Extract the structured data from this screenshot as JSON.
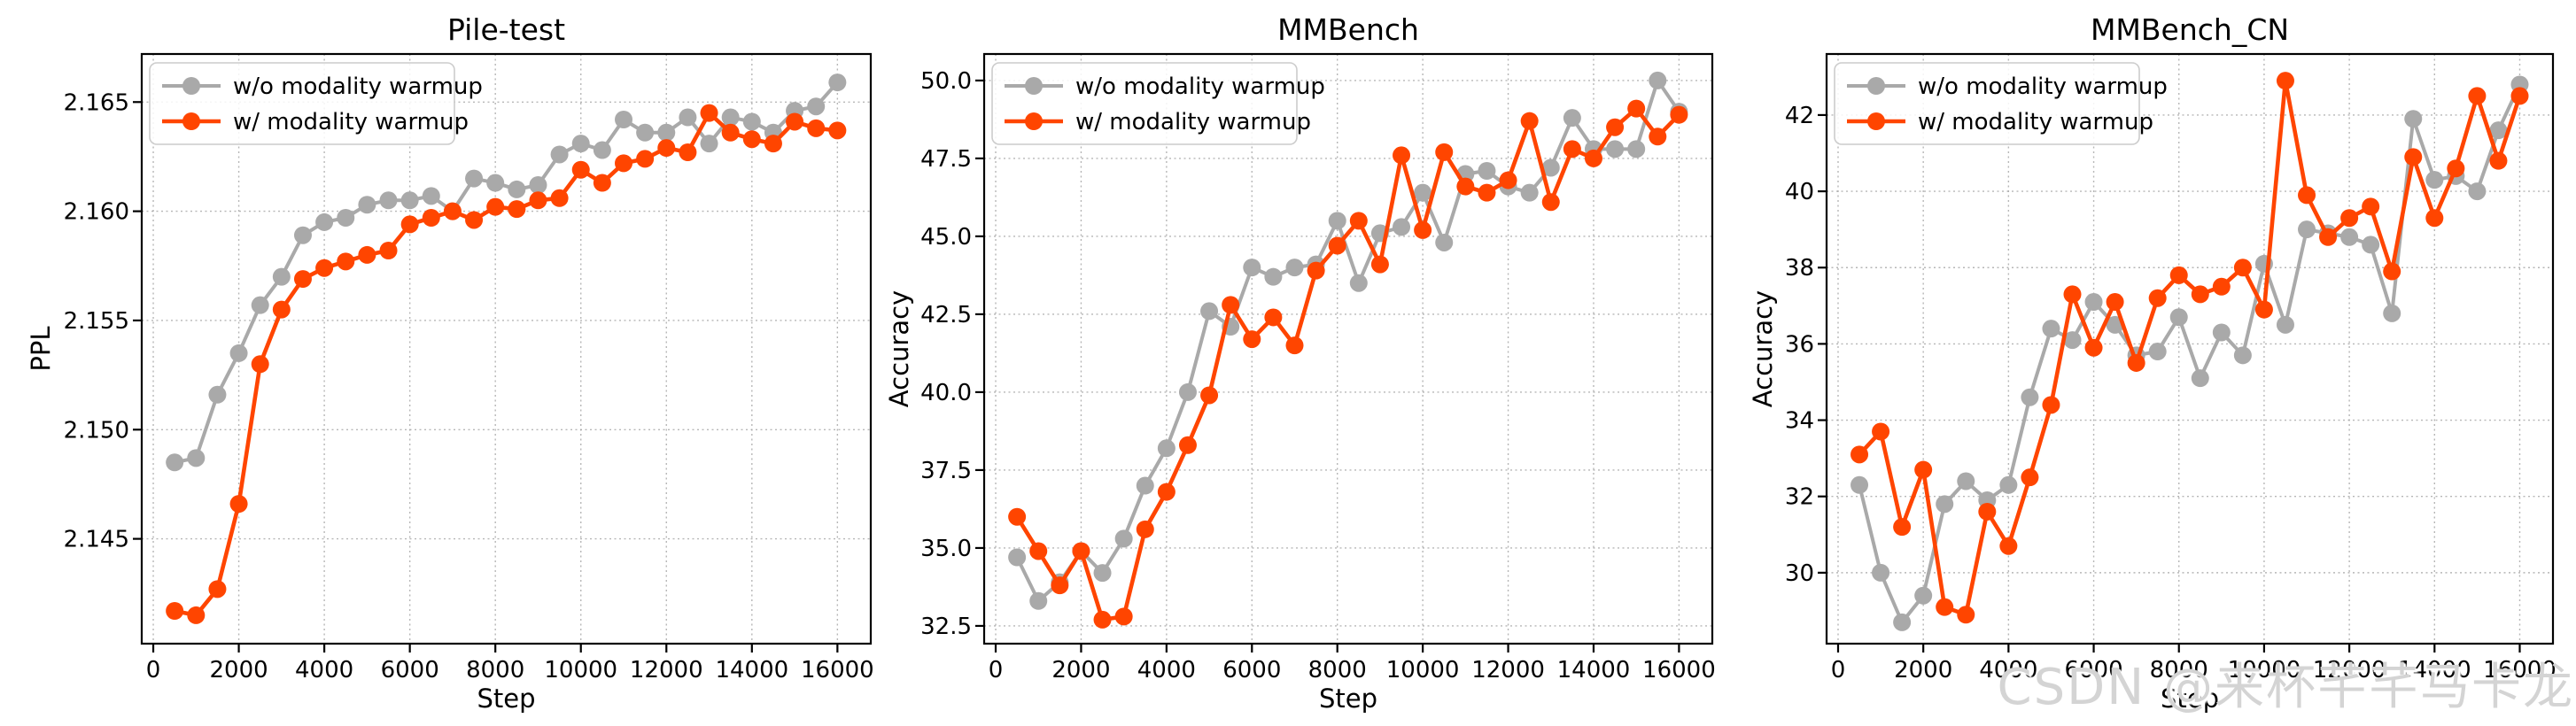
{
  "figure": {
    "watermark": "CSDN @来杯芊芊马卡龙",
    "background": "#ffffff",
    "accent_colors": {
      "without_warmup": "#a9a9a9",
      "with_warmup": "#ff4500"
    },
    "legend_labels": [
      "w/o modality warmup",
      "w/ modality warmup"
    ]
  },
  "chart_data": [
    {
      "type": "line",
      "title": "Pile-test",
      "xlabel": "Step",
      "ylabel": "PPL",
      "grid": true,
      "legend_position": "upper left",
      "xlim": [
        -270,
        16780
      ],
      "ylim": [
        2.1402,
        2.1672
      ],
      "xticks": [
        0,
        2000,
        4000,
        6000,
        8000,
        10000,
        12000,
        14000,
        16000
      ],
      "yticks": [
        2.145,
        2.15,
        2.155,
        2.16,
        2.165
      ],
      "ytick_decimals": 3,
      "x": [
        500,
        1000,
        1500,
        2000,
        2500,
        3000,
        3500,
        4000,
        4500,
        5000,
        5500,
        6000,
        6500,
        7000,
        7500,
        8000,
        8500,
        9000,
        9500,
        10000,
        10500,
        11000,
        11500,
        12000,
        12500,
        13000,
        13500,
        14000,
        14500,
        15000,
        15500,
        16000
      ],
      "series": [
        {
          "name": "w/o modality warmup",
          "color": "#a9a9a9",
          "values": [
            2.1485,
            2.1487,
            2.1516,
            2.1535,
            2.1557,
            2.157,
            2.1589,
            2.1595,
            2.1597,
            2.1603,
            2.1605,
            2.1605,
            2.1607,
            2.16,
            2.1615,
            2.1613,
            2.161,
            2.1612,
            2.1626,
            2.1631,
            2.1628,
            2.1642,
            2.1636,
            2.1636,
            2.1643,
            2.1631,
            2.1643,
            2.1641,
            2.1636,
            2.1646,
            2.1648,
            2.1659
          ]
        },
        {
          "name": "w/ modality warmup",
          "color": "#ff4500",
          "values": [
            2.1417,
            2.1415,
            2.1427,
            2.1466,
            2.153,
            2.1555,
            2.1569,
            2.1574,
            2.1577,
            2.158,
            2.1582,
            2.1594,
            2.1597,
            2.16,
            2.1596,
            2.1602,
            2.1601,
            2.1605,
            2.1606,
            2.1619,
            2.1613,
            2.1622,
            2.1624,
            2.1629,
            2.1627,
            2.1645,
            2.1636,
            2.1633,
            2.1631,
            2.1641,
            2.1638,
            2.1637
          ]
        }
      ]
    },
    {
      "type": "line",
      "title": "MMBench",
      "xlabel": "Step",
      "ylabel": "Accuracy",
      "grid": true,
      "legend_position": "upper left",
      "xlim": [
        -270,
        16780
      ],
      "ylim": [
        31.93,
        50.85
      ],
      "xticks": [
        0,
        2000,
        4000,
        6000,
        8000,
        10000,
        12000,
        14000,
        16000
      ],
      "yticks": [
        32.5,
        35.0,
        37.5,
        40.0,
        42.5,
        45.0,
        47.5,
        50.0
      ],
      "ytick_decimals": 1,
      "x": [
        500,
        1000,
        1500,
        2000,
        2500,
        3000,
        3500,
        4000,
        4500,
        5000,
        5500,
        6000,
        6500,
        7000,
        7500,
        8000,
        8500,
        9000,
        9500,
        10000,
        10500,
        11000,
        11500,
        12000,
        12500,
        13000,
        13500,
        14000,
        14500,
        15000,
        15500,
        16000
      ],
      "series": [
        {
          "name": "w/o modality warmup",
          "color": "#a9a9a9",
          "values": [
            34.7,
            33.3,
            33.9,
            34.9,
            34.2,
            35.3,
            37.0,
            38.2,
            40.0,
            42.6,
            42.1,
            44.0,
            43.7,
            44.0,
            44.1,
            45.5,
            43.5,
            45.1,
            45.3,
            46.4,
            44.8,
            47.0,
            47.1,
            46.6,
            46.4,
            47.2,
            48.8,
            47.8,
            47.8,
            47.8,
            50.0,
            49.0
          ]
        },
        {
          "name": "w/ modality warmup",
          "color": "#ff4500",
          "values": [
            36.0,
            34.9,
            33.8,
            34.9,
            32.7,
            32.8,
            35.6,
            36.8,
            38.3,
            39.9,
            42.8,
            41.7,
            42.4,
            41.5,
            43.9,
            44.7,
            45.5,
            44.1,
            47.6,
            45.2,
            47.7,
            46.6,
            46.4,
            46.8,
            48.7,
            46.1,
            47.8,
            47.5,
            48.5,
            49.1,
            48.2,
            48.9
          ]
        }
      ]
    },
    {
      "type": "line",
      "title": "MMBench_CN",
      "xlabel": "Step",
      "ylabel": "Accuracy",
      "grid": true,
      "legend_position": "upper left",
      "xlim": [
        -270,
        16780
      ],
      "ylim": [
        28.14,
        43.6
      ],
      "xticks": [
        0,
        2000,
        4000,
        6000,
        8000,
        10000,
        12000,
        14000,
        16000
      ],
      "yticks": [
        30,
        32,
        34,
        36,
        38,
        40,
        42
      ],
      "ytick_decimals": 0,
      "x": [
        500,
        1000,
        1500,
        2000,
        2500,
        3000,
        3500,
        4000,
        4500,
        5000,
        5500,
        6000,
        6500,
        7000,
        7500,
        8000,
        8500,
        9000,
        9500,
        10000,
        10500,
        11000,
        11500,
        12000,
        12500,
        13000,
        13500,
        14000,
        14500,
        15000,
        15500,
        16000
      ],
      "series": [
        {
          "name": "w/o modality warmup",
          "color": "#a9a9a9",
          "values": [
            32.3,
            30.0,
            28.7,
            29.4,
            31.8,
            32.4,
            31.9,
            32.3,
            34.6,
            36.4,
            36.1,
            37.1,
            36.5,
            35.7,
            35.8,
            36.7,
            35.1,
            36.3,
            35.7,
            38.1,
            36.5,
            39.0,
            38.9,
            38.8,
            38.6,
            36.8,
            41.9,
            40.3,
            40.4,
            40.0,
            41.6,
            42.8
          ]
        },
        {
          "name": "w/ modality warmup",
          "color": "#ff4500",
          "values": [
            33.1,
            33.7,
            31.2,
            32.7,
            29.1,
            28.9,
            31.6,
            30.7,
            32.5,
            34.4,
            37.3,
            35.9,
            37.1,
            35.5,
            37.2,
            37.8,
            37.3,
            37.5,
            38.0,
            36.9,
            42.9,
            39.9,
            38.8,
            39.3,
            39.6,
            37.9,
            40.9,
            39.3,
            40.6,
            42.5,
            40.8,
            42.5
          ]
        }
      ]
    }
  ]
}
